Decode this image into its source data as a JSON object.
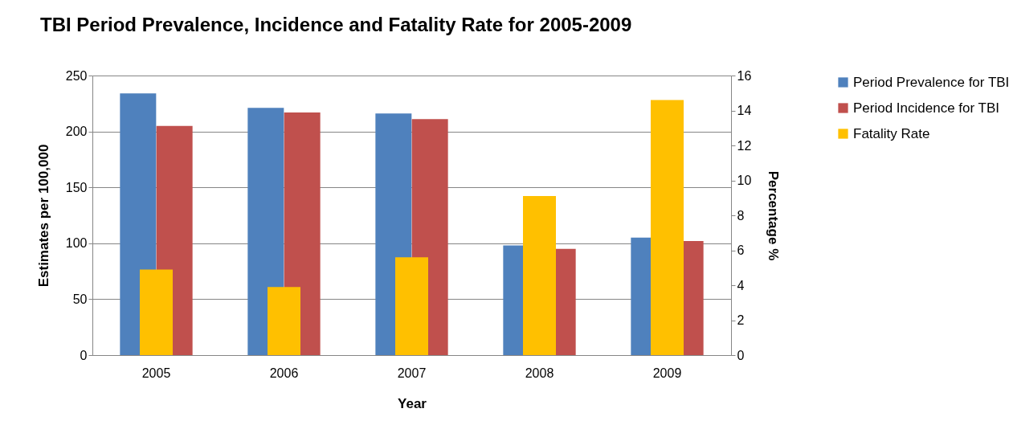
{
  "chart_data": {
    "type": "bar",
    "title": "TBI Period Prevalence, Incidence and Fatality Rate for 2005-2009",
    "xlabel": "Year",
    "ylabel": "Estimates per 100,000",
    "y2label": "Percentage %",
    "categories": [
      "2005",
      "2006",
      "2007",
      "2008",
      "2009"
    ],
    "series": [
      {
        "name": " Period Prevalence for TBI",
        "color": "#4f81bd",
        "values": [
          234,
          221,
          216,
          98,
          105
        ]
      },
      {
        "name": "Period Incidence for TBI",
        "color": "#c0504d",
        "values": [
          205,
          217,
          211,
          95,
          102
        ]
      },
      {
        "name": "Fatality Rate",
        "color": "#ffc000",
        "axis": "y2",
        "values": [
          4.9,
          3.9,
          5.6,
          9.1,
          14.6
        ]
      }
    ],
    "ylim": [
      0,
      250
    ],
    "yticks": [
      0,
      50,
      100,
      150,
      200,
      250
    ],
    "y2lim": [
      0,
      16
    ],
    "y2ticks": [
      0,
      2,
      4,
      6,
      8,
      10,
      12,
      14,
      16
    ],
    "grid": "y",
    "legend": "right"
  }
}
